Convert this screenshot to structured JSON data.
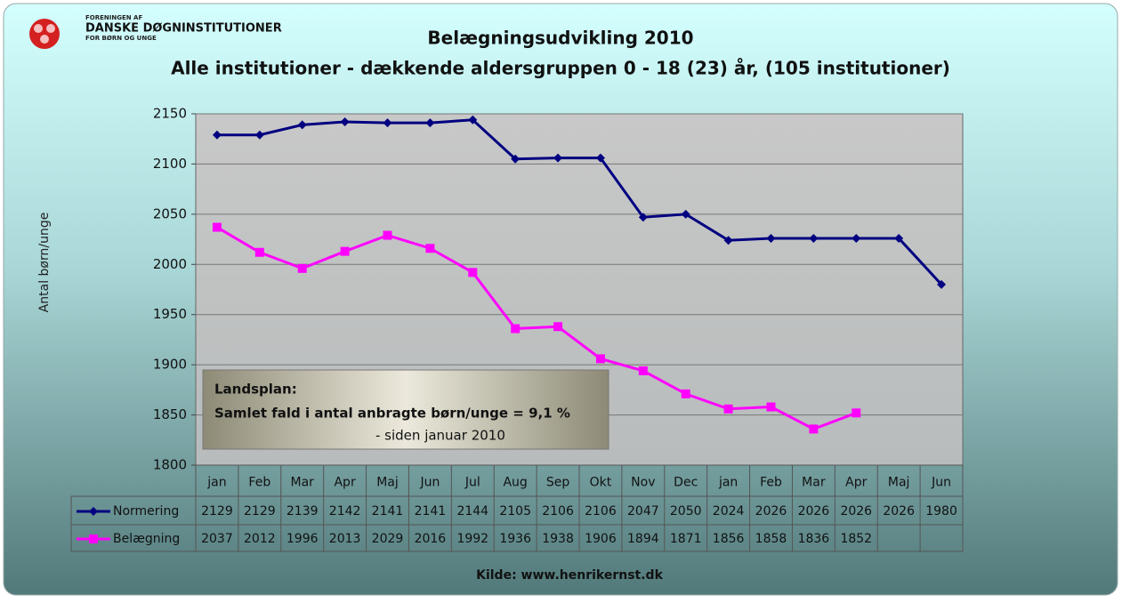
{
  "logo": {
    "line1": "FORENINGEN AF",
    "line2": "DANSKE DØGNINSTITUTIONER",
    "line3": "FOR BØRN OG UNGE"
  },
  "chart_data": {
    "type": "line",
    "title": "Belægningsudvikling 2010",
    "subtitle": "Alle institutioner - dækkende aldersgruppen 0 - 18 (23) år, (105 institutioner)",
    "y_label": "Antal børn/unge",
    "categories": [
      "jan",
      "Feb",
      "Mar",
      "Apr",
      "Maj",
      "Jun",
      "Jul",
      "Aug",
      "Sep",
      "Okt",
      "Nov",
      "Dec",
      "jan",
      "Feb",
      "Mar",
      "Apr",
      "Maj",
      "Jun"
    ],
    "series": [
      {
        "name": "Normering",
        "color": "#000080",
        "marker": "diamond",
        "values": [
          2129,
          2129,
          2139,
          2142,
          2141,
          2141,
          2144,
          2105,
          2106,
          2106,
          2047,
          2050,
          2024,
          2026,
          2026,
          2026,
          2026,
          1980
        ]
      },
      {
        "name": "Belægning",
        "color": "#ff00ff",
        "marker": "square",
        "values": [
          2037,
          2012,
          1996,
          2013,
          2029,
          2016,
          1992,
          1936,
          1938,
          1906,
          1894,
          1871,
          1856,
          1858,
          1836,
          1852,
          null,
          null
        ]
      }
    ],
    "ylim": [
      1800,
      2150
    ],
    "yticks": [
      1800,
      1850,
      1900,
      1950,
      2000,
      2050,
      2100,
      2150
    ],
    "grid": true,
    "annotation": {
      "line1": "Landsplan:",
      "line2": "Samlet fald i antal anbragte børn/unge = 9,1 %",
      "line3": "- siden januar 2010"
    },
    "source": "Kilde: www.henrikernst.dk"
  }
}
